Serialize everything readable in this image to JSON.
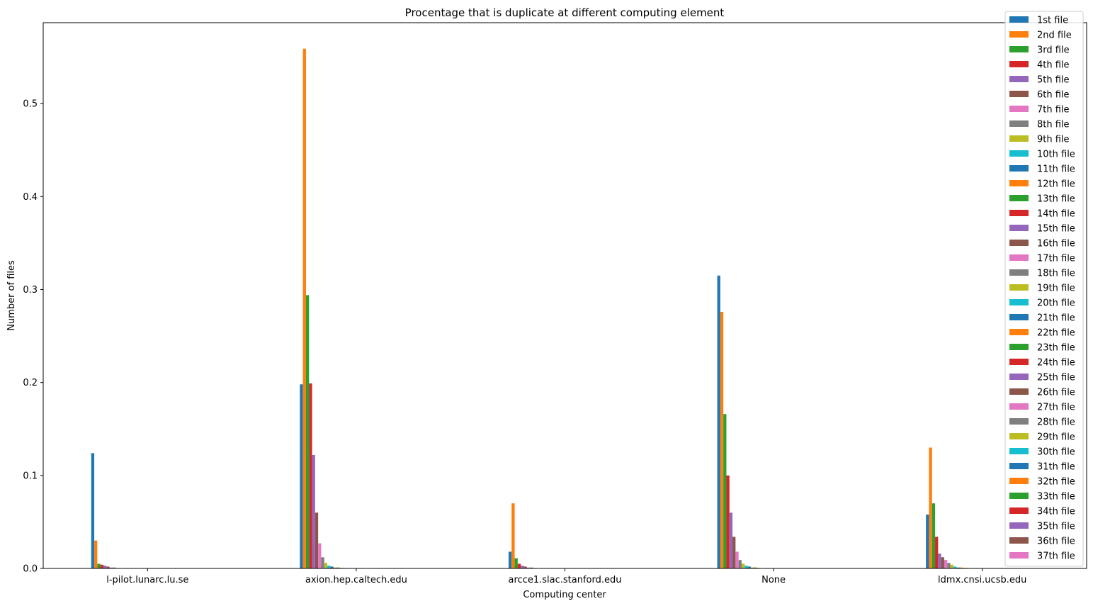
{
  "chart_data": {
    "type": "bar",
    "title": "Procentage that is duplicate at different computing element",
    "xlabel": "Computing center",
    "ylabel": "Number of files",
    "categories": [
      "l-pilot.lunarc.lu.se",
      "axion.hep.caltech.edu",
      "arcce1.slac.stanford.edu",
      "None",
      "ldmx.cnsi.ucsb.edu"
    ],
    "ylim": [
      0,
      0.587
    ],
    "yticks": [
      0.0,
      0.1,
      0.2,
      0.3,
      0.4,
      0.5
    ],
    "ytick_labels": [
      "0.0",
      "0.1",
      "0.2",
      "0.3",
      "0.4",
      "0.5"
    ],
    "grid": false,
    "legend_position": "top-right",
    "palette": [
      "#1f77b4",
      "#ff7f0e",
      "#2ca02c",
      "#d62728",
      "#9467bd",
      "#8c564b",
      "#e377c2",
      "#7f7f7f",
      "#bcbd22",
      "#17becf"
    ],
    "series": [
      {
        "name": "1st file",
        "values": [
          0.124,
          0.198,
          0.018,
          0.315,
          0.058
        ]
      },
      {
        "name": "2nd file",
        "values": [
          0.03,
          0.559,
          0.07,
          0.276,
          0.13
        ]
      },
      {
        "name": "3rd file",
        "values": [
          0.005,
          0.294,
          0.011,
          0.166,
          0.07
        ]
      },
      {
        "name": "4th file",
        "values": [
          0.004,
          0.199,
          0.005,
          0.1,
          0.034
        ]
      },
      {
        "name": "5th file",
        "values": [
          0.003,
          0.122,
          0.003,
          0.06,
          0.016
        ]
      },
      {
        "name": "6th file",
        "values": [
          0.002,
          0.06,
          0.002,
          0.034,
          0.012
        ]
      },
      {
        "name": "7th file",
        "values": [
          0.001,
          0.027,
          0.001,
          0.018,
          0.009
        ]
      },
      {
        "name": "8th file",
        "values": [
          0.001,
          0.012,
          0.001,
          0.009,
          0.006
        ]
      },
      {
        "name": "9th file",
        "values": [
          0.0005,
          0.006,
          0.0005,
          0.005,
          0.004
        ]
      },
      {
        "name": "10th file",
        "values": [
          0.0003,
          0.003,
          0.0003,
          0.003,
          0.002
        ]
      },
      {
        "name": "11th file",
        "values": [
          0.0002,
          0.002,
          0.0002,
          0.002,
          0.001
        ]
      },
      {
        "name": "12th file",
        "values": [
          0.0001,
          0.001,
          0.0001,
          0.001,
          0.001
        ]
      },
      {
        "name": "13th file",
        "values": [
          0.0001,
          0.001,
          0.0001,
          0.001,
          0.0005
        ]
      },
      {
        "name": "14th file",
        "values": [
          0.0001,
          0.0005,
          0,
          0.0005,
          0.0005
        ]
      },
      {
        "name": "15th file",
        "values": [
          0,
          0.0005,
          0,
          0.0003,
          0.0003
        ]
      },
      {
        "name": "16th file",
        "values": [
          0,
          0.0003,
          0,
          0.0002,
          0.0002
        ]
      },
      {
        "name": "17th file",
        "values": [
          0,
          0.0003,
          0,
          0.0002,
          0.0001
        ]
      },
      {
        "name": "18th file",
        "values": [
          0,
          0.0002,
          0,
          0.0001,
          0.0001
        ]
      },
      {
        "name": "19th file",
        "values": [
          0,
          0.0002,
          0,
          0.0001,
          0.0001
        ]
      },
      {
        "name": "20th file",
        "values": [
          0,
          0.0001,
          0,
          0.0001,
          0
        ]
      },
      {
        "name": "21th file",
        "values": [
          0,
          0.0001,
          0,
          0,
          0
        ]
      },
      {
        "name": "22th file",
        "values": [
          0,
          0.0001,
          0,
          0,
          0
        ]
      },
      {
        "name": "23th file",
        "values": [
          0,
          0.0001,
          0,
          0,
          0
        ]
      },
      {
        "name": "24th file",
        "values": [
          0,
          0.0001,
          0,
          0,
          0
        ]
      },
      {
        "name": "25th file",
        "values": [
          0,
          0,
          0,
          0,
          0
        ]
      },
      {
        "name": "26th file",
        "values": [
          0,
          0,
          0,
          0,
          0
        ]
      },
      {
        "name": "27th file",
        "values": [
          0,
          0,
          0,
          0,
          0
        ]
      },
      {
        "name": "28th file",
        "values": [
          0,
          0,
          0,
          0,
          0
        ]
      },
      {
        "name": "29th file",
        "values": [
          0,
          0,
          0,
          0,
          0
        ]
      },
      {
        "name": "30th file",
        "values": [
          0,
          0,
          0,
          0,
          0
        ]
      },
      {
        "name": "31th file",
        "values": [
          0,
          0,
          0,
          0,
          0
        ]
      },
      {
        "name": "32th file",
        "values": [
          0,
          0,
          0,
          0,
          0
        ]
      },
      {
        "name": "33th file",
        "values": [
          0,
          0,
          0,
          0,
          0
        ]
      },
      {
        "name": "34th file",
        "values": [
          0,
          0,
          0,
          0,
          0
        ]
      },
      {
        "name": "35th file",
        "values": [
          0,
          0,
          0,
          0,
          0
        ]
      },
      {
        "name": "36th file",
        "values": [
          0,
          0,
          0,
          0,
          0
        ]
      },
      {
        "name": "37th file",
        "values": [
          0,
          0,
          0,
          0,
          0
        ]
      }
    ]
  }
}
